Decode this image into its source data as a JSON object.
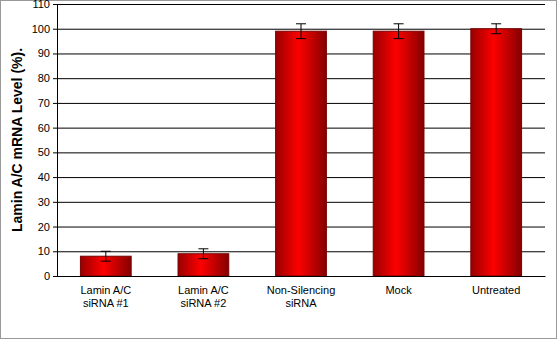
{
  "chart_data": {
    "type": "bar",
    "y_label": "Lamin A/C mRNA Level (%).",
    "categories": [
      "Lamin A/C\nsiRNA #1",
      "Lamin A/C\nsiRNA #2",
      "Non-Silencing\nsiRNA",
      "Mock",
      "Untreated"
    ],
    "values": [
      8,
      9,
      99,
      99,
      100
    ],
    "errors": [
      2,
      2,
      3,
      3,
      2
    ],
    "color": "#cc0000",
    "ylim": [
      0,
      110
    ],
    "yticks": [
      0,
      10,
      20,
      30,
      40,
      50,
      60,
      70,
      80,
      90,
      100,
      110
    ],
    "grid": true
  }
}
